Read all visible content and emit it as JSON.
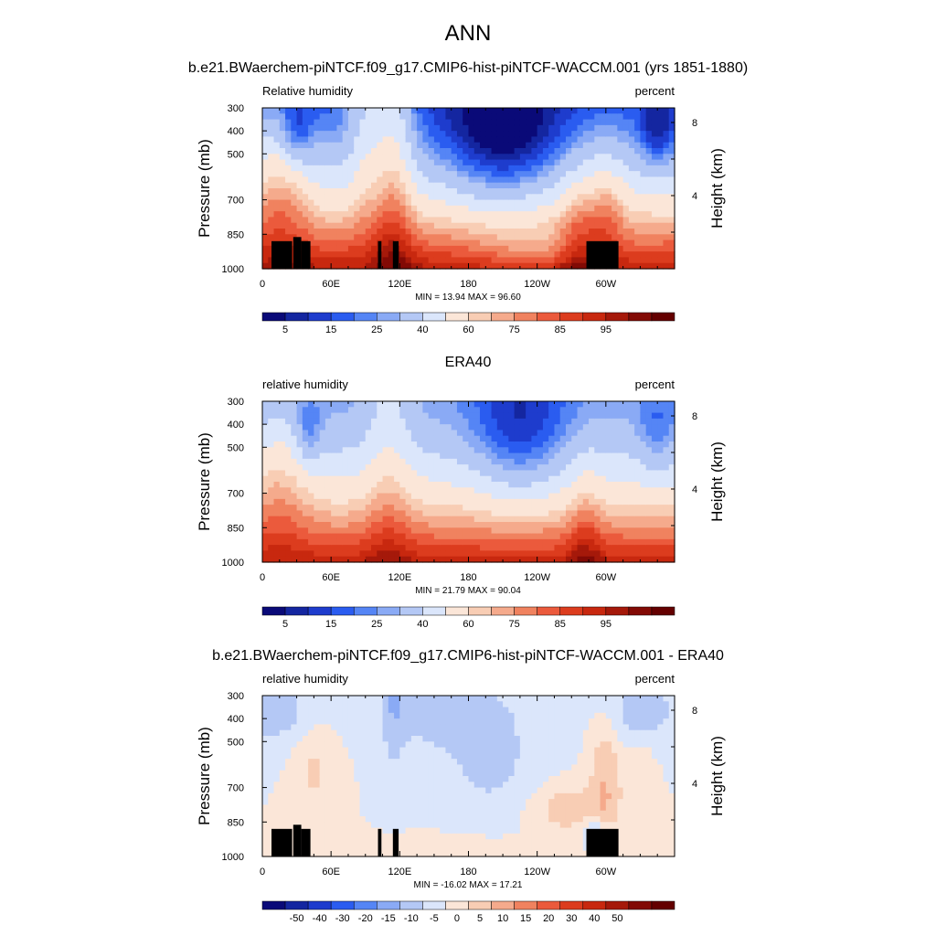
{
  "figure": {
    "title": "ANN"
  },
  "palettes": {
    "blue_red_18": [
      "#0a0a78",
      "#1426a0",
      "#1e3ccd",
      "#2a5cf0",
      "#5585f5",
      "#8aaaf5",
      "#b4c8f5",
      "#dbe6fb",
      "#fbe6d8",
      "#f8cdb4",
      "#f5aa8c",
      "#f0825f",
      "#eb5a3c",
      "#dc3c1e",
      "#c8280f",
      "#a5190a",
      "#820a05",
      "#640000"
    ]
  },
  "chart_data": [
    {
      "type": "heatmap",
      "panel_title": "b.e21.BWaerchem-piNTCF.f09_g17.CMIP6-hist-piNTCF-WACCM.001 (yrs 1851-1880)",
      "left_label": "Relative humidity",
      "right_label": "percent",
      "ylabel": "Pressure (mb)",
      "y2label": "Height (km)",
      "x_ticks": [
        "0",
        "60E",
        "120E",
        "180",
        "120W",
        "60W"
      ],
      "x_tick_values": [
        0,
        60,
        120,
        180,
        240,
        300
      ],
      "xlim": [
        0,
        360
      ],
      "y_ticks": [
        "300",
        "400",
        "500",
        "700",
        "850",
        "1000"
      ],
      "y_tick_values": [
        300,
        400,
        500,
        700,
        850,
        1000
      ],
      "ylim": [
        300,
        1000
      ],
      "y2_ticks": [
        "8",
        "4"
      ],
      "y2_tick_values": [
        8,
        4
      ],
      "min_max": "MIN =  13.94  MAX =  96.60",
      "colorbar_labels": [
        "5",
        "15",
        "25",
        "40",
        "60",
        "75",
        "85",
        "95"
      ],
      "levels": [
        5,
        10,
        15,
        20,
        25,
        30,
        40,
        50,
        60,
        65,
        70,
        75,
        80,
        85,
        90,
        95
      ],
      "field": "model",
      "terrain": true
    },
    {
      "type": "heatmap",
      "panel_title": "ERA40",
      "left_label": "relative humidity",
      "right_label": "percent",
      "ylabel": "Pressure (mb)",
      "y2label": "Height (km)",
      "x_ticks": [
        "0",
        "60E",
        "120E",
        "180",
        "120W",
        "60W"
      ],
      "x_tick_values": [
        0,
        60,
        120,
        180,
        240,
        300
      ],
      "xlim": [
        0,
        360
      ],
      "y_ticks": [
        "300",
        "400",
        "500",
        "700",
        "850",
        "1000"
      ],
      "y_tick_values": [
        300,
        400,
        500,
        700,
        850,
        1000
      ],
      "ylim": [
        300,
        1000
      ],
      "y2_ticks": [
        "8",
        "4"
      ],
      "y2_tick_values": [
        8,
        4
      ],
      "min_max": "MIN =  21.79  MAX =  90.04",
      "colorbar_labels": [
        "5",
        "15",
        "25",
        "40",
        "60",
        "75",
        "85",
        "95"
      ],
      "levels": [
        5,
        10,
        15,
        20,
        25,
        30,
        40,
        50,
        60,
        65,
        70,
        75,
        80,
        85,
        90,
        95
      ],
      "field": "obs",
      "terrain": false
    },
    {
      "type": "heatmap",
      "panel_title": "b.e21.BWaerchem-piNTCF.f09_g17.CMIP6-hist-piNTCF-WACCM.001 - ERA40",
      "left_label": "relative humidity",
      "right_label": "percent",
      "ylabel": "Pressure (mb)",
      "y2label": "Height (km)",
      "x_ticks": [
        "0",
        "60E",
        "120E",
        "180",
        "120W",
        "60W"
      ],
      "x_tick_values": [
        0,
        60,
        120,
        180,
        240,
        300
      ],
      "xlim": [
        0,
        360
      ],
      "y_ticks": [
        "300",
        "400",
        "500",
        "700",
        "850",
        "1000"
      ],
      "y_tick_values": [
        300,
        400,
        500,
        700,
        850,
        1000
      ],
      "ylim": [
        300,
        1000
      ],
      "y2_ticks": [
        "8",
        "4"
      ],
      "y2_tick_values": [
        8,
        4
      ],
      "min_max": "MIN = -16.02  MAX =  17.21",
      "colorbar_labels": [
        "-50",
        "-40",
        "-30",
        "-20",
        "-15",
        "-10",
        "-5",
        "0",
        "5",
        "10",
        "15",
        "20",
        "30",
        "40",
        "50"
      ],
      "levels": [
        -50,
        -40,
        -30,
        -20,
        -15,
        -10,
        -5,
        0,
        5,
        10,
        15,
        20,
        30,
        40,
        50
      ],
      "field": "diff",
      "terrain": true
    }
  ]
}
